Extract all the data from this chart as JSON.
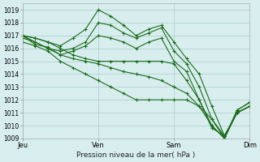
{
  "bg_color": "#d8eeee",
  "grid_color": "#aacccc",
  "line_color": "#1a6b1a",
  "marker_color": "#1a6b1a",
  "xlabel_text": "Pression niveau de la mer( hPa )",
  "xtick_labels": [
    "Jeu",
    "Ven",
    "Sam",
    "Dim"
  ],
  "ylim": [
    1009,
    1019.5
  ],
  "yticks": [
    1009,
    1010,
    1011,
    1012,
    1013,
    1014,
    1015,
    1016,
    1017,
    1018,
    1019
  ],
  "xlim": [
    0,
    90
  ],
  "xtick_positions": [
    0,
    30,
    60,
    90
  ],
  "lines": [
    {
      "x": [
        0,
        5,
        10,
        15,
        20,
        25,
        30,
        35,
        40,
        45,
        50,
        55,
        60,
        65,
        70,
        75,
        80,
        85,
        90
      ],
      "y": [
        1017.0,
        1016.8,
        1016.5,
        1016.2,
        1016.8,
        1017.5,
        1019.0,
        1018.5,
        1017.8,
        1017.0,
        1017.5,
        1017.8,
        1016.5,
        1015.2,
        1014.0,
        1011.5,
        1009.2,
        1011.0,
        1011.5
      ]
    },
    {
      "x": [
        0,
        5,
        10,
        15,
        20,
        25,
        30,
        35,
        40,
        45,
        50,
        55,
        60,
        65,
        70,
        75,
        80,
        85,
        90
      ],
      "y": [
        1017.0,
        1016.5,
        1016.0,
        1015.8,
        1016.0,
        1016.5,
        1018.0,
        1017.8,
        1017.2,
        1016.8,
        1017.2,
        1017.6,
        1015.8,
        1014.8,
        1013.0,
        1010.5,
        1009.0,
        1011.2,
        1011.8
      ]
    },
    {
      "x": [
        0,
        5,
        10,
        15,
        20,
        25,
        30,
        35,
        40,
        45,
        50,
        55,
        60,
        65,
        70,
        75,
        80,
        85,
        90
      ],
      "y": [
        1017.0,
        1016.3,
        1016.1,
        1015.5,
        1015.8,
        1016.2,
        1017.0,
        1016.8,
        1016.5,
        1016.0,
        1016.5,
        1016.8,
        1015.0,
        1014.2,
        1012.0,
        1009.8,
        1009.2,
        1011.0,
        1011.5
      ]
    },
    {
      "x": [
        0,
        5,
        10,
        15,
        20,
        25,
        30,
        35,
        40,
        45,
        50,
        55,
        60,
        65,
        70,
        75,
        80,
        85,
        90
      ],
      "y": [
        1017.0,
        1016.8,
        1016.5,
        1016.0,
        1015.5,
        1015.2,
        1015.0,
        1015.0,
        1015.0,
        1015.0,
        1015.0,
        1015.0,
        1014.8,
        1013.5,
        1012.0,
        1010.0,
        1009.0,
        1011.0,
        1011.5
      ]
    },
    {
      "x": [
        0,
        5,
        10,
        15,
        20,
        25,
        30,
        35,
        40,
        45,
        50,
        55,
        60,
        65,
        70,
        75,
        80,
        85,
        90
      ],
      "y": [
        1016.8,
        1016.5,
        1016.0,
        1015.5,
        1015.2,
        1015.0,
        1014.8,
        1014.5,
        1014.2,
        1014.0,
        1013.8,
        1013.5,
        1013.0,
        1012.5,
        1011.5,
        1010.0,
        1009.0,
        1011.2,
        1011.8
      ]
    },
    {
      "x": [
        0,
        5,
        10,
        15,
        20,
        25,
        30,
        35,
        40,
        45,
        50,
        55,
        60,
        65,
        70,
        75,
        80,
        85,
        90
      ],
      "y": [
        1016.5,
        1016.2,
        1015.8,
        1015.0,
        1014.5,
        1014.0,
        1013.5,
        1013.0,
        1012.5,
        1012.0,
        1012.0,
        1012.0,
        1012.0,
        1012.0,
        1011.5,
        1010.5,
        1009.2,
        1011.0,
        1011.5
      ]
    }
  ]
}
